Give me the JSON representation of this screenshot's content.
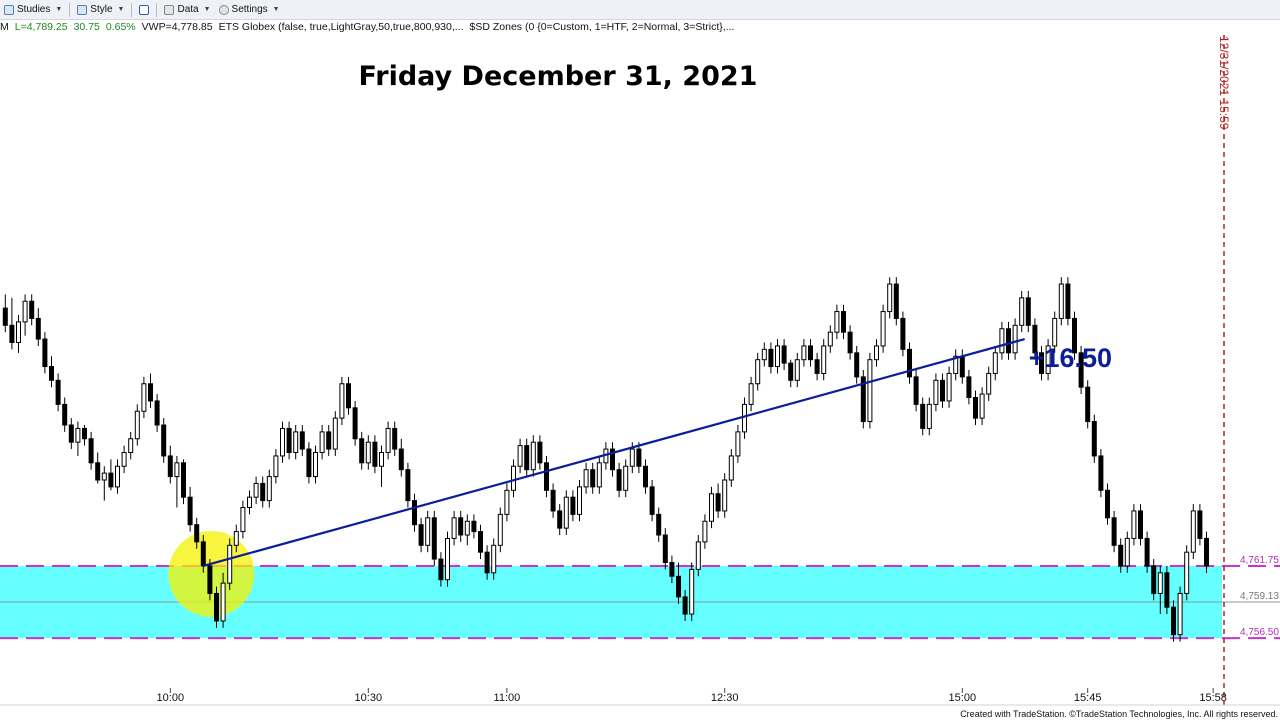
{
  "toolbar": {
    "studies_label": "Studies",
    "style_label": "Style",
    "data_label": "Data",
    "settings_label": "Settings"
  },
  "status": {
    "symbol_tail": "M",
    "last": "L=4,789.25",
    "change": "30.75",
    "pct": "0.65%",
    "vwap": "VWP=4,778.85",
    "study1": "ETS Globex (false,  true,LightGray,50,true,800,930,...",
    "study2": "$SD Zones (0  {0=Custom, 1=HTF, 2=Normal, 3=Strict},..."
  },
  "footer": "Created with TradeStation. ©TradeStation Technologies, Inc. All rights reserved.",
  "colors": {
    "zone": "#66ffff",
    "zone_line": "#cc33cc",
    "trend": "#0d1d9a",
    "vline": "#b22222",
    "highlight": "#f5f200",
    "up_candle": "#ffffff",
    "down_candle": "#000000"
  },
  "chart_data": {
    "type": "candlestick",
    "title": "Friday December 31, 2021",
    "ylim": [
      4752,
      4800
    ],
    "x_ticks": [
      "10:00",
      "10:30",
      "11:00",
      "12:30",
      "15:00",
      "15:45",
      "15:58"
    ],
    "zone": {
      "top": 4761.75,
      "mid": 4759.13,
      "bottom": 4756.5
    },
    "price_labels": [
      "4,761.75",
      "4,759.13",
      "4,756.50"
    ],
    "trendline": {
      "from": {
        "bar": 30,
        "price": 4761.75
      },
      "to": {
        "bar": 154,
        "price": 4778.25
      }
    },
    "annotation": "+16.50",
    "vline_label": "12/31/2021 15:59",
    "highlight_bar": 30,
    "bars": [
      [
        4780.5,
        4781.5,
        4778.75,
        4779.25
      ],
      [
        4779.25,
        4781.25,
        4777.5,
        4778
      ],
      [
        4778,
        4780,
        4777.25,
        4779.5
      ],
      [
        4779.5,
        4781.5,
        4778.5,
        4781
      ],
      [
        4781,
        4781.5,
        4779.25,
        4779.75
      ],
      [
        4779.75,
        4780.5,
        4777.75,
        4778.25
      ],
      [
        4778.25,
        4778.75,
        4775.75,
        4776.25
      ],
      [
        4776.25,
        4777,
        4774.75,
        4775.25
      ],
      [
        4775.25,
        4775.75,
        4773,
        4773.5
      ],
      [
        4773.5,
        4774,
        4771.5,
        4772
      ],
      [
        4772,
        4772.5,
        4770.25,
        4770.75
      ],
      [
        4770.75,
        4772.25,
        4769.75,
        4771.75
      ],
      [
        4771.75,
        4772,
        4770.5,
        4771
      ],
      [
        4771,
        4771.5,
        4768.75,
        4769.25
      ],
      [
        4769.25,
        4770,
        4767.75,
        4768
      ],
      [
        4768,
        4769,
        4766.5,
        4768.5
      ],
      [
        4768.5,
        4769.5,
        4767.25,
        4767.5
      ],
      [
        4767.5,
        4769.5,
        4767,
        4769
      ],
      [
        4769,
        4770.5,
        4768.5,
        4770
      ],
      [
        4770,
        4771.5,
        4769.5,
        4771
      ],
      [
        4771,
        4773.5,
        4770.5,
        4773
      ],
      [
        4773,
        4775.5,
        4772.5,
        4775
      ],
      [
        4775,
        4775.75,
        4773.25,
        4773.75
      ],
      [
        4773.75,
        4774.25,
        4771.5,
        4772
      ],
      [
        4772,
        4772.5,
        4769.25,
        4769.75
      ],
      [
        4769.75,
        4770.5,
        4767.75,
        4768.25
      ],
      [
        4768.25,
        4769.75,
        4766,
        4769.25
      ],
      [
        4769.25,
        4769.5,
        4766.25,
        4766.75
      ],
      [
        4766.75,
        4767.5,
        4764.25,
        4764.75
      ],
      [
        4764.75,
        4765.25,
        4763,
        4763.5
      ],
      [
        4763.5,
        4764,
        4761.25,
        4761.75
      ],
      [
        4761.75,
        4762.25,
        4759.25,
        4759.75
      ],
      [
        4759.75,
        4760.25,
        4757.25,
        4757.75
      ],
      [
        4757.75,
        4761.25,
        4757.25,
        4760.5
      ],
      [
        4760.5,
        4763.75,
        4760,
        4763.25
      ],
      [
        4763.25,
        4764.75,
        4762.75,
        4764.25
      ],
      [
        4764.25,
        4766.5,
        4763.75,
        4766
      ],
      [
        4766,
        4767.25,
        4765.5,
        4766.75
      ],
      [
        4766.75,
        4768.25,
        4766.25,
        4767.75
      ],
      [
        4767.75,
        4768.25,
        4766,
        4766.5
      ],
      [
        4766.5,
        4768.75,
        4766,
        4768.25
      ],
      [
        4768.25,
        4770.25,
        4767.75,
        4769.75
      ],
      [
        4769.75,
        4772.25,
        4769.25,
        4771.75
      ],
      [
        4771.75,
        4772.25,
        4769.5,
        4770
      ],
      [
        4770,
        4772,
        4769.5,
        4771.5
      ],
      [
        4771.5,
        4772,
        4769.75,
        4770.25
      ],
      [
        4770.25,
        4770.75,
        4767.75,
        4768.25
      ],
      [
        4768.25,
        4770.5,
        4767.75,
        4770
      ],
      [
        4770,
        4772,
        4769.5,
        4771.5
      ],
      [
        4771.5,
        4772,
        4769.75,
        4770.25
      ],
      [
        4770.25,
        4773,
        4769.75,
        4772.5
      ],
      [
        4772.5,
        4775.5,
        4772,
        4775
      ],
      [
        4775,
        4775.5,
        4772.75,
        4773.25
      ],
      [
        4773.25,
        4773.75,
        4770.5,
        4771
      ],
      [
        4771,
        4771.5,
        4768.75,
        4769.25
      ],
      [
        4769.25,
        4771.25,
        4768.75,
        4770.75
      ],
      [
        4770.75,
        4771.25,
        4768.5,
        4769
      ],
      [
        4769,
        4770.5,
        4767.5,
        4770
      ],
      [
        4770,
        4772.25,
        4769.5,
        4771.75
      ],
      [
        4771.75,
        4772.25,
        4769.75,
        4770.25
      ],
      [
        4770.25,
        4771,
        4768.25,
        4768.75
      ],
      [
        4768.75,
        4769.25,
        4766,
        4766.5
      ],
      [
        4766.5,
        4767,
        4764.25,
        4764.75
      ],
      [
        4764.75,
        4765.25,
        4762.75,
        4763.25
      ],
      [
        4763.25,
        4765.75,
        4762.75,
        4765.25
      ],
      [
        4765.25,
        4765.75,
        4761.75,
        4762.25
      ],
      [
        4762.25,
        4762.75,
        4760.25,
        4760.75
      ],
      [
        4760.75,
        4764.25,
        4760.25,
        4763.75
      ],
      [
        4763.75,
        4765.75,
        4763.25,
        4765.25
      ],
      [
        4765.25,
        4765.75,
        4763.5,
        4764
      ],
      [
        4764,
        4765.5,
        4763.25,
        4765
      ],
      [
        4765,
        4765.5,
        4763.75,
        4764.25
      ],
      [
        4764.25,
        4764.75,
        4762.25,
        4762.75
      ],
      [
        4762.75,
        4763.25,
        4760.75,
        4761.25
      ],
      [
        4761.25,
        4763.75,
        4760.75,
        4763.25
      ],
      [
        4763.25,
        4766,
        4762.75,
        4765.5
      ],
      [
        4765.5,
        4767.75,
        4765,
        4767.25
      ],
      [
        4767.25,
        4769.5,
        4766.75,
        4769
      ],
      [
        4769,
        4771,
        4768.5,
        4770.5
      ],
      [
        4770.5,
        4771,
        4768.25,
        4768.75
      ],
      [
        4768.75,
        4771.25,
        4768.25,
        4770.75
      ],
      [
        4770.75,
        4771.25,
        4768.75,
        4769.25
      ],
      [
        4769.25,
        4769.75,
        4766.75,
        4767.25
      ],
      [
        4767.25,
        4767.75,
        4765.25,
        4765.75
      ],
      [
        4765.75,
        4766.25,
        4764,
        4764.5
      ],
      [
        4764.5,
        4767.25,
        4764,
        4766.75
      ],
      [
        4766.75,
        4767.25,
        4765,
        4765.5
      ],
      [
        4765.5,
        4768,
        4765,
        4767.5
      ],
      [
        4767.5,
        4769.25,
        4767,
        4768.75
      ],
      [
        4768.75,
        4769.25,
        4767,
        4767.5
      ],
      [
        4767.5,
        4769.75,
        4767,
        4769.25
      ],
      [
        4769.25,
        4770.75,
        4768.75,
        4770.25
      ],
      [
        4770.25,
        4770.75,
        4768.25,
        4768.75
      ],
      [
        4768.75,
        4769.25,
        4766.75,
        4767.25
      ],
      [
        4767.25,
        4769.5,
        4766.75,
        4769
      ],
      [
        4769,
        4770.75,
        4768.5,
        4770.25
      ],
      [
        4770.25,
        4770.75,
        4768.5,
        4769
      ],
      [
        4769,
        4769.5,
        4767,
        4767.5
      ],
      [
        4767.5,
        4768,
        4765,
        4765.5
      ],
      [
        4765.5,
        4766,
        4763.5,
        4764
      ],
      [
        4764,
        4764.5,
        4761.5,
        4762
      ],
      [
        4762,
        4762.5,
        4760.5,
        4761
      ],
      [
        4761,
        4762,
        4759,
        4759.5
      ],
      [
        4759.5,
        4760,
        4757.75,
        4758.25
      ],
      [
        4758.25,
        4762,
        4757.75,
        4761.5
      ],
      [
        4761.5,
        4764,
        4761,
        4763.5
      ],
      [
        4763.5,
        4765.5,
        4763,
        4765
      ],
      [
        4765,
        4767.5,
        4764.5,
        4767
      ],
      [
        4767,
        4767.75,
        4765.25,
        4765.75
      ],
      [
        4765.75,
        4768.5,
        4765.25,
        4768
      ],
      [
        4768,
        4770.25,
        4767.5,
        4769.75
      ],
      [
        4769.75,
        4772,
        4769.25,
        4771.5
      ],
      [
        4771.5,
        4774,
        4771,
        4773.5
      ],
      [
        4773.5,
        4775.5,
        4773,
        4775
      ],
      [
        4775,
        4777.25,
        4774.5,
        4776.75
      ],
      [
        4776.75,
        4778,
        4776.25,
        4777.5
      ],
      [
        4777.5,
        4778,
        4775.75,
        4776.25
      ],
      [
        4776.25,
        4778.25,
        4775.75,
        4777.75
      ],
      [
        4777.75,
        4778.25,
        4776,
        4776.5
      ],
      [
        4776.5,
        4776.75,
        4774.75,
        4775.25
      ],
      [
        4775.25,
        4777.25,
        4774.75,
        4776.75
      ],
      [
        4776.75,
        4778.25,
        4776.25,
        4777.75
      ],
      [
        4777.75,
        4778.25,
        4776.25,
        4776.75
      ],
      [
        4776.75,
        4777.25,
        4775.25,
        4775.75
      ],
      [
        4775.75,
        4778.25,
        4775.25,
        4777.75
      ],
      [
        4777.75,
        4779.25,
        4777.25,
        4778.75
      ],
      [
        4778.75,
        4780.75,
        4778.25,
        4780.25
      ],
      [
        4780.25,
        4780.75,
        4778.25,
        4778.75
      ],
      [
        4778.75,
        4779.25,
        4776.75,
        4777.25
      ],
      [
        4777.25,
        4777.75,
        4775,
        4775.5
      ],
      [
        4775.5,
        4776,
        4771.75,
        4772.25
      ],
      [
        4772.25,
        4777.25,
        4771.75,
        4776.75
      ],
      [
        4776.75,
        4778.25,
        4776.25,
        4777.75
      ],
      [
        4777.75,
        4780.75,
        4777.25,
        4780.25
      ],
      [
        4780.25,
        4782.75,
        4779.75,
        4782.25
      ],
      [
        4782.25,
        4782.75,
        4779.25,
        4779.75
      ],
      [
        4779.75,
        4780.25,
        4777,
        4777.5
      ],
      [
        4777.5,
        4778,
        4775,
        4775.5
      ],
      [
        4775.5,
        4776,
        4773,
        4773.5
      ],
      [
        4773.5,
        4774,
        4771.25,
        4771.75
      ],
      [
        4771.75,
        4774,
        4771.25,
        4773.5
      ],
      [
        4773.5,
        4775.75,
        4773,
        4775.25
      ],
      [
        4775.25,
        4775.75,
        4773.25,
        4773.75
      ],
      [
        4773.75,
        4776.25,
        4773.25,
        4775.75
      ],
      [
        4775.75,
        4777.5,
        4775.25,
        4777
      ],
      [
        4777,
        4777.5,
        4775,
        4775.5
      ],
      [
        4775.5,
        4776,
        4773.5,
        4774
      ],
      [
        4774,
        4774.5,
        4772,
        4772.5
      ],
      [
        4772.5,
        4774.75,
        4772,
        4774.25
      ],
      [
        4774.25,
        4776.25,
        4773.75,
        4775.75
      ],
      [
        4775.75,
        4777.75,
        4775.25,
        4777.25
      ],
      [
        4777.25,
        4779.5,
        4776.75,
        4779
      ],
      [
        4779,
        4779.5,
        4776.75,
        4777.25
      ],
      [
        4777.25,
        4779.75,
        4776.75,
        4779.25
      ],
      [
        4779.25,
        4781.75,
        4778.75,
        4781.25
      ],
      [
        4781.25,
        4781.75,
        4778.75,
        4779.25
      ],
      [
        4779.25,
        4779.75,
        4776.75,
        4777.25
      ],
      [
        4777.25,
        4777.75,
        4775.25,
        4775.75
      ],
      [
        4775.75,
        4778.25,
        4775.25,
        4777.75
      ],
      [
        4777.75,
        4780.25,
        4777.25,
        4779.75
      ],
      [
        4779.75,
        4782.75,
        4779.25,
        4782.25
      ],
      [
        4782.25,
        4782.75,
        4779.25,
        4779.75
      ],
      [
        4779.75,
        4780.25,
        4776.75,
        4777.25
      ],
      [
        4777.25,
        4777.75,
        4774.25,
        4774.75
      ],
      [
        4774.75,
        4775.25,
        4771.75,
        4772.25
      ],
      [
        4772.25,
        4772.75,
        4769.25,
        4769.75
      ],
      [
        4769.75,
        4770.25,
        4766.75,
        4767.25
      ],
      [
        4767.25,
        4767.75,
        4764.75,
        4765.25
      ],
      [
        4765.25,
        4765.75,
        4762.75,
        4763.25
      ],
      [
        4763.25,
        4763.75,
        4761.25,
        4761.75
      ],
      [
        4761.75,
        4764.25,
        4761.25,
        4763.75
      ],
      [
        4763.75,
        4766.25,
        4763.25,
        4765.75
      ],
      [
        4765.75,
        4766.25,
        4763.25,
        4763.75
      ],
      [
        4763.75,
        4764.25,
        4761.25,
        4761.75
      ],
      [
        4761.75,
        4762.25,
        4759.25,
        4759.75
      ],
      [
        4759.75,
        4761.75,
        4758.25,
        4761.25
      ],
      [
        4761.25,
        4761.75,
        4758.25,
        4758.75
      ],
      [
        4758.75,
        4759.25,
        4756.25,
        4756.75
      ],
      [
        4756.75,
        4760.25,
        4756.25,
        4759.75
      ],
      [
        4759.75,
        4763.25,
        4759.25,
        4762.75
      ],
      [
        4762.75,
        4766.25,
        4762.25,
        4765.75
      ],
      [
        4765.75,
        4766.25,
        4763.25,
        4763.75
      ],
      [
        4763.75,
        4764.25,
        4761.25,
        4761.75
      ]
    ]
  }
}
